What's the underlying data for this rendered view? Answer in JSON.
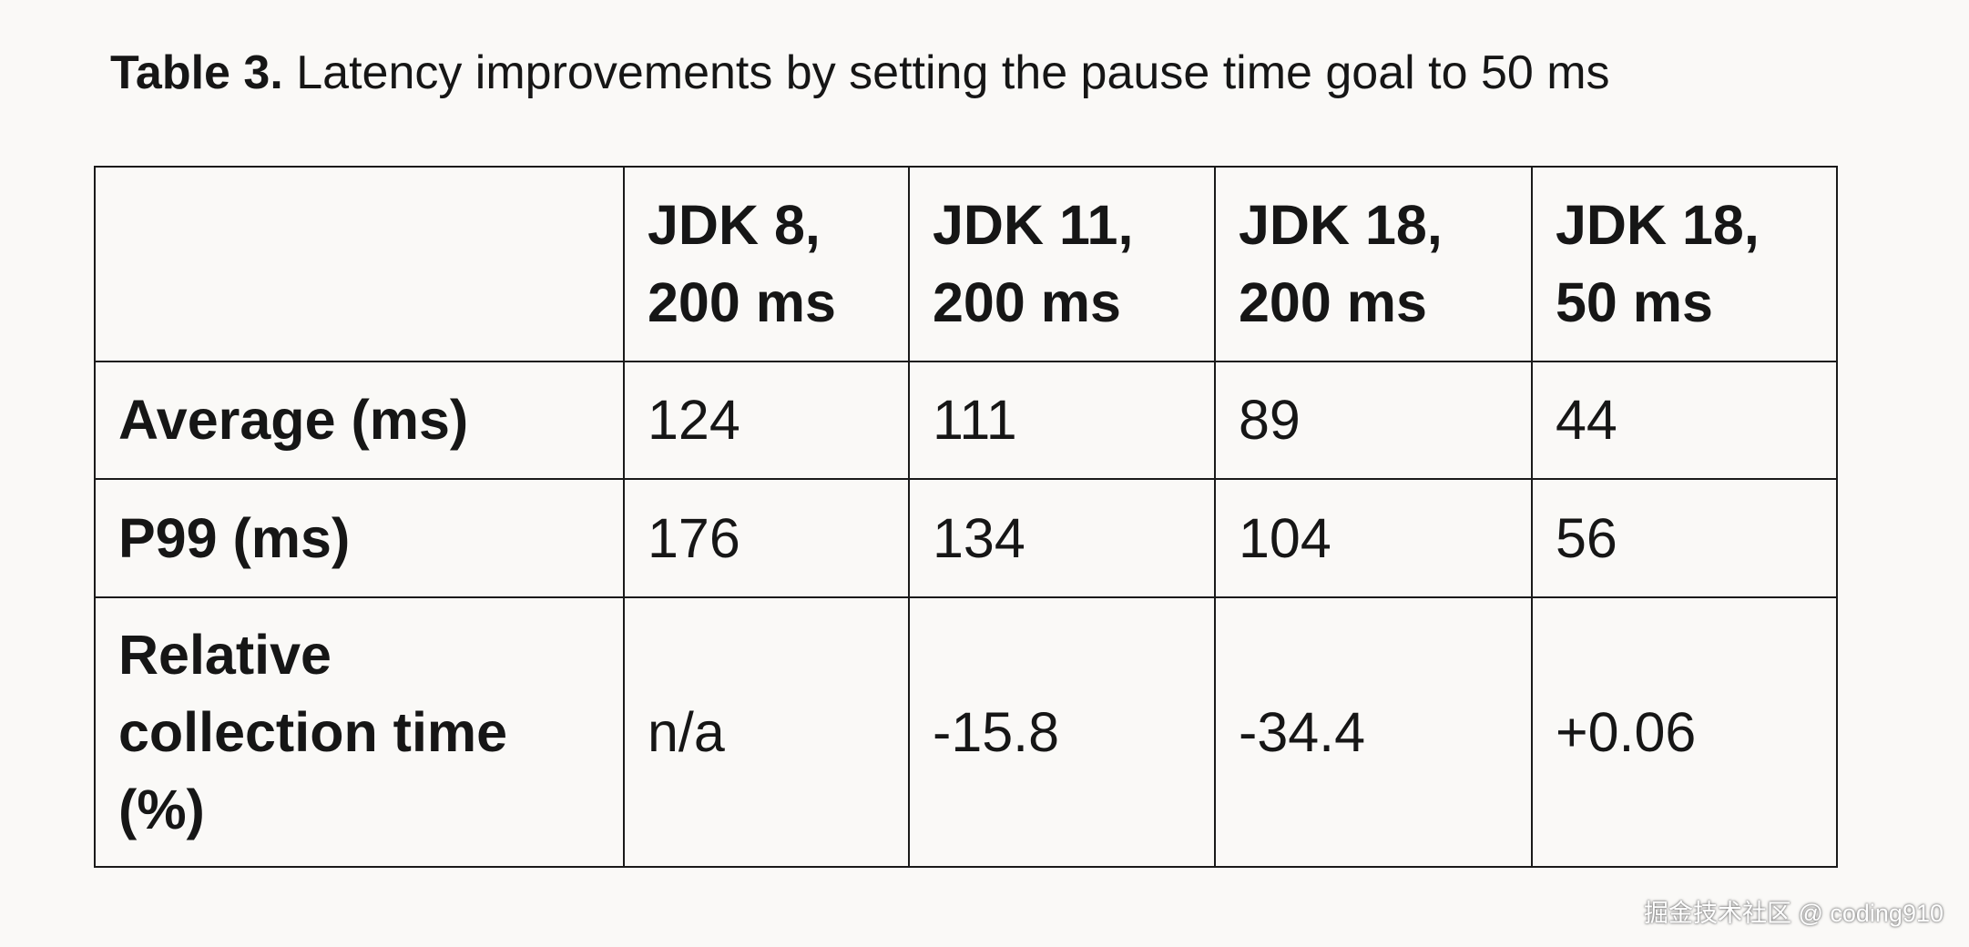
{
  "caption": {
    "label": "Table 3.",
    "text": "Latency improvements by setting the pause time goal to 50 ms"
  },
  "table": {
    "columns": [
      "JDK 8, 200 ms",
      "JDK 11, 200 ms",
      "JDK 18, 200 ms",
      "JDK 18, 50 ms"
    ],
    "rows": [
      {
        "label": "Average (ms)",
        "cells": [
          "124",
          "111",
          "89",
          "44"
        ]
      },
      {
        "label": "P99 (ms)",
        "cells": [
          "176",
          "134",
          "104",
          "56"
        ]
      },
      {
        "label": "Relative collection time (%)",
        "cells": [
          "n/a",
          "-15.8",
          "-34.4",
          "+0.06"
        ]
      }
    ]
  },
  "watermark": "掘金技术社区 @ coding910"
}
